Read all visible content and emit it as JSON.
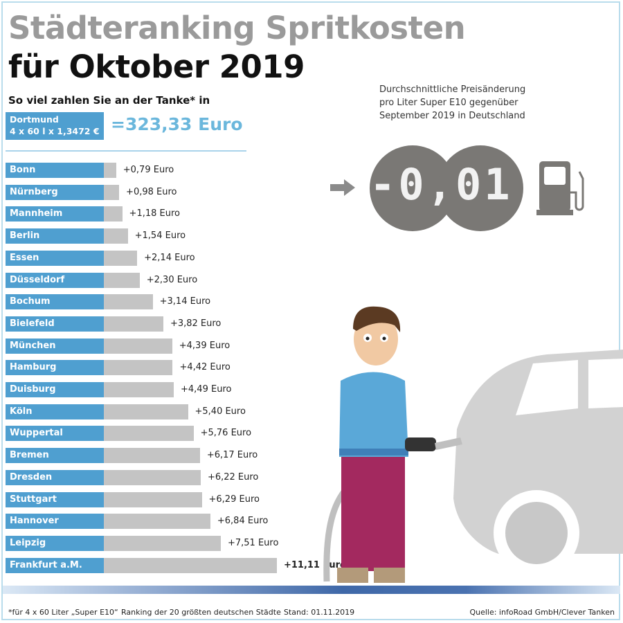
{
  "header": {
    "title_line1": "Städteranking Spritkosten",
    "title_line2": "für Oktober 2019",
    "subtitle": "So viel zahlen Sie an der Tanke* in"
  },
  "reference": {
    "city": "Dortmund",
    "formula": "4 x 60 l x 1,3472 €",
    "total": "=323,33 Euro"
  },
  "info": {
    "line1": "Durchschnittliche Preisänderung",
    "line2": "pro Liter Super E10 gegenüber",
    "line3": "September 2019 in Deutschland",
    "display_value": "-0,01"
  },
  "chart_data": {
    "type": "bar",
    "orientation": "horizontal",
    "unit": "Euro",
    "categories": [
      "Bonn",
      "Nürnberg",
      "Mannheim",
      "Berlin",
      "Essen",
      "Düsseldorf",
      "Bochum",
      "Bielefeld",
      "München",
      "Hamburg",
      "Duisburg",
      "Köln",
      "Wuppertal",
      "Bremen",
      "Dresden",
      "Stuttgart",
      "Hannover",
      "Leipzig",
      "Frankfurt a.M."
    ],
    "values": [
      0.79,
      0.98,
      1.18,
      1.54,
      2.14,
      2.3,
      3.14,
      3.82,
      4.39,
      4.42,
      4.49,
      5.4,
      5.76,
      6.17,
      6.22,
      6.29,
      6.84,
      7.51,
      11.11
    ],
    "labels": [
      "+0,79 Euro",
      "+0,98 Euro",
      "+1,18 Euro",
      "+1,54 Euro",
      "+2,14 Euro",
      "+2,30 Euro",
      "+3,14 Euro",
      "+3,82 Euro",
      "+4,39 Euro",
      "+4,42 Euro",
      "+4,49 Euro",
      "+5,40 Euro",
      "+5,76 Euro",
      "+6,17 Euro",
      "+6,22 Euro",
      "+6,29 Euro",
      "+6,84 Euro",
      "+7,51 Euro",
      "+11,11 Euro"
    ],
    "colors": {
      "label_box": "#4f9fd0",
      "bar": "#c4c4c4"
    }
  },
  "footer": {
    "note": "*für 4 x 60 Liter „Super E10“",
    "ranking": "Ranking der 20 größten deutschen Städte",
    "date": "Stand: 01.11.2019",
    "source": "Quelle: infoRoad GmbH/Clever Tanken"
  }
}
